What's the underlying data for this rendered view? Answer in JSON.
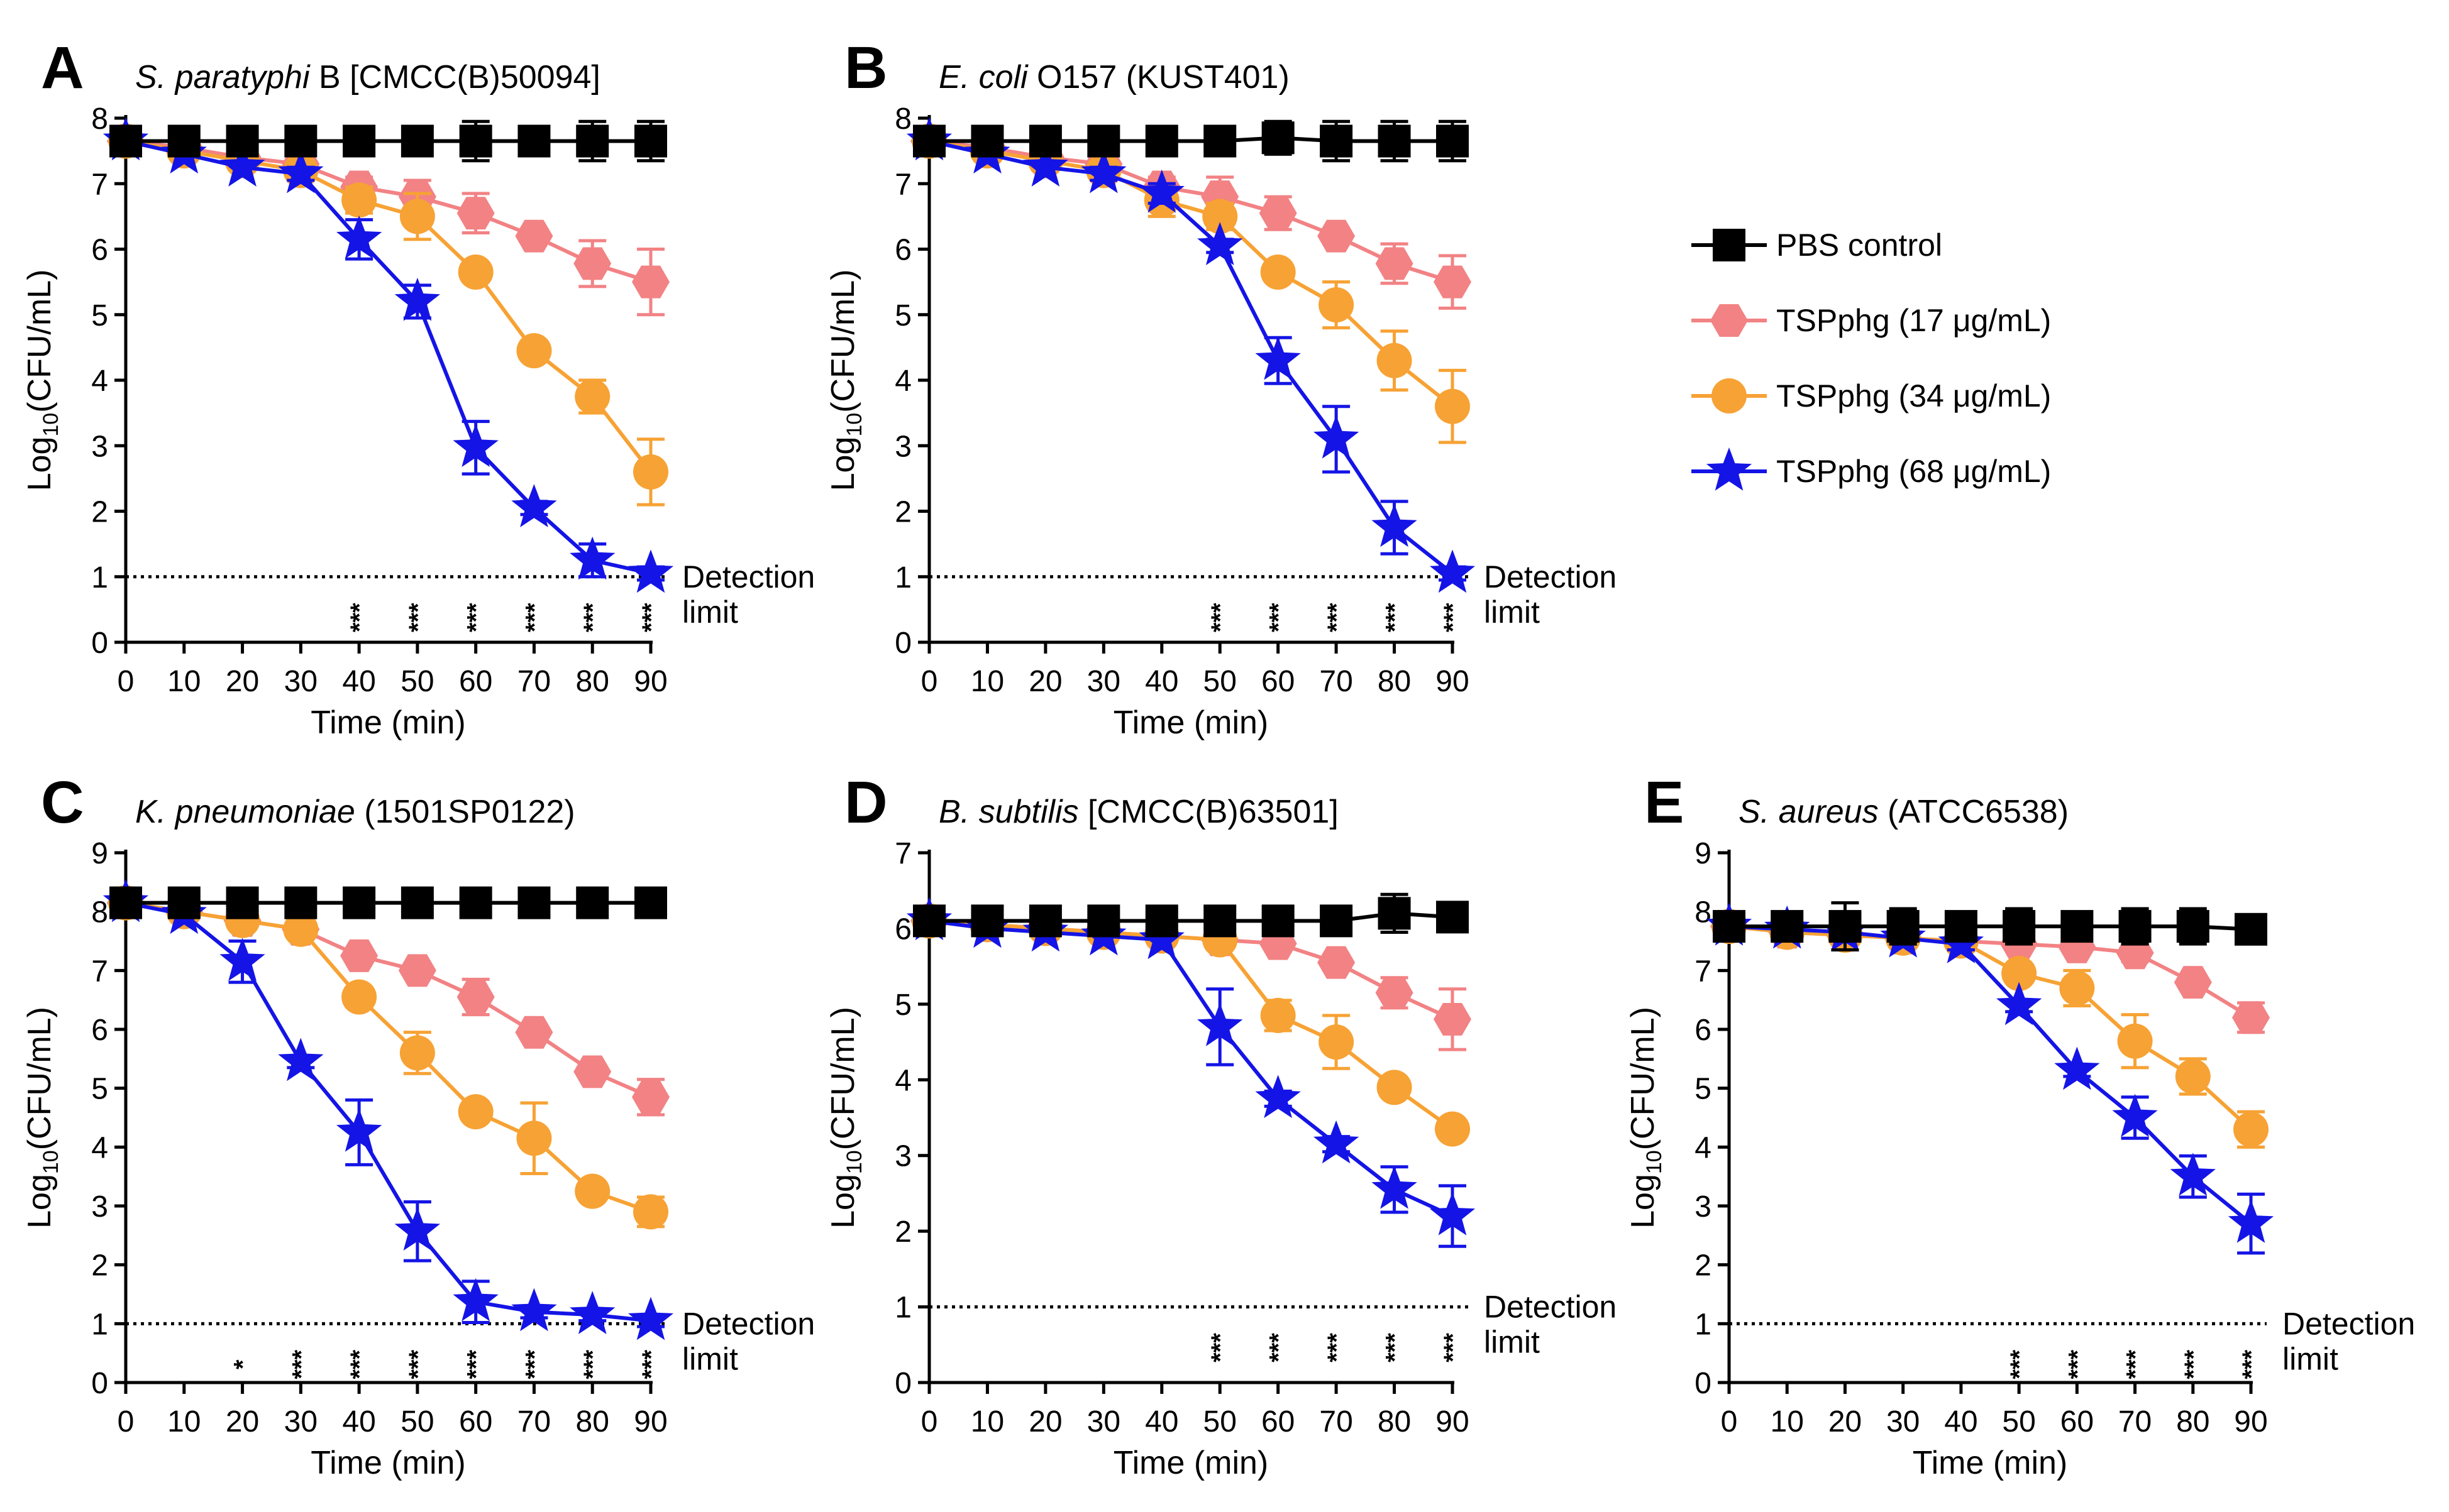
{
  "colors": {
    "pbs": "#000000",
    "tsp17": "#f28284",
    "tsp34": "#f7a234",
    "tsp68": "#1414e6"
  },
  "legend": [
    {
      "key": "pbs",
      "label": "PBS control",
      "marker": "square"
    },
    {
      "key": "tsp17",
      "label": "TSPphg (17 μg/mL)",
      "marker": "hexagon"
    },
    {
      "key": "tsp34",
      "label": "TSPphg (34 μg/mL)",
      "marker": "circle"
    },
    {
      "key": "tsp68",
      "label": "TSPphg (68 μg/mL)",
      "marker": "star"
    }
  ],
  "axis_common": {
    "xlabel": "Time (min)",
    "ylabel_prefix": "Log",
    "ylabel_sub": "10",
    "ylabel_suffix": "(CFU/mL)",
    "x_ticks": [
      0,
      10,
      20,
      30,
      40,
      50,
      60,
      70,
      80,
      90
    ]
  },
  "detection_limit_label": [
    "Detection",
    "limit"
  ],
  "chart_data": [
    {
      "type": "line",
      "panel": "A",
      "title_italic": "S. paratyphi",
      "title_rest": " B [CMCC(B)50094]",
      "xlabel": "Time (min)",
      "ylabel": "Log10(CFU/mL)",
      "ylim": [
        0,
        8
      ],
      "y_ticks": [
        0,
        1,
        2,
        3,
        4,
        5,
        6,
        7,
        8
      ],
      "detection_limit": 1,
      "x": [
        0,
        10,
        20,
        30,
        40,
        50,
        60,
        70,
        80,
        90
      ],
      "series": [
        {
          "key": "pbs",
          "values": [
            7.65,
            7.65,
            7.65,
            7.65,
            7.65,
            7.65,
            7.65,
            7.65,
            7.65,
            7.65
          ],
          "errors": [
            0.05,
            0.05,
            0.05,
            0.05,
            0.05,
            0.05,
            0.3,
            0.05,
            0.3,
            0.3
          ]
        },
        {
          "key": "tsp17",
          "values": [
            7.65,
            7.55,
            7.4,
            7.3,
            6.95,
            6.8,
            6.55,
            6.2,
            5.78,
            5.5
          ],
          "errors": [
            0.05,
            0.05,
            0.05,
            0.1,
            0.15,
            0.25,
            0.3,
            0.1,
            0.35,
            0.5
          ]
        },
        {
          "key": "tsp34",
          "values": [
            7.65,
            7.5,
            7.35,
            7.2,
            6.75,
            6.5,
            5.65,
            4.45,
            3.75,
            2.6
          ],
          "errors": [
            0.05,
            0.05,
            0.05,
            0.1,
            0.2,
            0.35,
            0.1,
            0.1,
            0.25,
            0.5
          ]
        },
        {
          "key": "tsp68",
          "values": [
            7.65,
            7.45,
            7.25,
            7.15,
            6.15,
            5.2,
            2.97,
            2.05,
            1.25,
            1.05
          ],
          "errors": [
            0.05,
            0.05,
            0.05,
            0.1,
            0.3,
            0.25,
            0.4,
            0.1,
            0.25,
            0.1
          ]
        }
      ],
      "significance": [
        {
          "x": 40,
          "label": "***"
        },
        {
          "x": 50,
          "label": "***"
        },
        {
          "x": 60,
          "label": "***"
        },
        {
          "x": 70,
          "label": "***"
        },
        {
          "x": 80,
          "label": "***"
        },
        {
          "x": 90,
          "label": "***"
        }
      ]
    },
    {
      "type": "line",
      "panel": "B",
      "title_italic": "E. coli",
      "title_rest": " O157 (KUST401)",
      "xlabel": "Time (min)",
      "ylabel": "Log10(CFU/mL)",
      "ylim": [
        0,
        8
      ],
      "y_ticks": [
        0,
        1,
        2,
        3,
        4,
        5,
        6,
        7,
        8
      ],
      "detection_limit": 1,
      "x": [
        0,
        10,
        20,
        30,
        40,
        50,
        60,
        70,
        80,
        90
      ],
      "series": [
        {
          "key": "pbs",
          "values": [
            7.65,
            7.65,
            7.65,
            7.65,
            7.65,
            7.65,
            7.7,
            7.65,
            7.65,
            7.65
          ],
          "errors": [
            0.05,
            0.05,
            0.05,
            0.05,
            0.05,
            0.05,
            0.25,
            0.3,
            0.3,
            0.3
          ]
        },
        {
          "key": "tsp17",
          "values": [
            7.65,
            7.55,
            7.4,
            7.3,
            6.95,
            6.8,
            6.55,
            6.2,
            5.78,
            5.5
          ],
          "errors": [
            0.05,
            0.05,
            0.05,
            0.1,
            0.15,
            0.3,
            0.25,
            0.1,
            0.3,
            0.4
          ]
        },
        {
          "key": "tsp34",
          "values": [
            7.65,
            7.5,
            7.35,
            7.2,
            6.75,
            6.5,
            5.65,
            5.15,
            4.3,
            3.6
          ],
          "errors": [
            0.05,
            0.05,
            0.05,
            0.1,
            0.25,
            0.2,
            0.1,
            0.35,
            0.45,
            0.55
          ]
        },
        {
          "key": "tsp68",
          "values": [
            7.65,
            7.45,
            7.25,
            7.15,
            6.85,
            6.05,
            4.3,
            3.1,
            1.75,
            1.05
          ],
          "errors": [
            0.05,
            0.05,
            0.05,
            0.1,
            0.15,
            0.1,
            0.35,
            0.5,
            0.4,
            0.1
          ]
        }
      ],
      "significance": [
        {
          "x": 50,
          "label": "***"
        },
        {
          "x": 60,
          "label": "***"
        },
        {
          "x": 70,
          "label": "***"
        },
        {
          "x": 80,
          "label": "***"
        },
        {
          "x": 90,
          "label": "***"
        }
      ]
    },
    {
      "type": "line",
      "panel": "C",
      "title_italic": "K. pneumoniae",
      "title_rest": " (1501SP0122)",
      "xlabel": "Time (min)",
      "ylabel": "Log10(CFU/mL)",
      "ylim": [
        0,
        9
      ],
      "y_ticks": [
        0,
        1,
        2,
        3,
        4,
        5,
        6,
        7,
        8,
        9
      ],
      "detection_limit": 1,
      "x": [
        0,
        10,
        20,
        30,
        40,
        50,
        60,
        70,
        80,
        90
      ],
      "series": [
        {
          "key": "pbs",
          "values": [
            8.15,
            8.15,
            8.15,
            8.15,
            8.15,
            8.15,
            8.15,
            8.15,
            8.15,
            8.15
          ],
          "errors": [
            0.05,
            0.05,
            0.05,
            0.05,
            0.05,
            0.05,
            0.05,
            0.05,
            0.05,
            0.05
          ]
        },
        {
          "key": "tsp17",
          "values": [
            8.15,
            8.0,
            7.85,
            7.7,
            7.25,
            7.0,
            6.55,
            5.95,
            5.28,
            4.85
          ],
          "errors": [
            0.05,
            0.05,
            0.1,
            0.1,
            0.1,
            0.1,
            0.3,
            0.1,
            0.1,
            0.3
          ]
        },
        {
          "key": "tsp34",
          "values": [
            8.15,
            8.0,
            7.85,
            7.7,
            6.55,
            5.6,
            4.6,
            4.15,
            3.25,
            2.9
          ],
          "errors": [
            0.05,
            0.05,
            0.1,
            0.1,
            0.1,
            0.35,
            0.1,
            0.6,
            0.1,
            0.25
          ]
        },
        {
          "key": "tsp68",
          "values": [
            8.15,
            7.95,
            7.15,
            5.45,
            4.25,
            2.57,
            1.37,
            1.2,
            1.15,
            1.05
          ],
          "errors": [
            0.05,
            0.05,
            0.35,
            0.1,
            0.55,
            0.5,
            0.35,
            0.1,
            0.1,
            0.1
          ]
        }
      ],
      "significance": [
        {
          "x": 20,
          "label": "*"
        },
        {
          "x": 30,
          "label": "***"
        },
        {
          "x": 40,
          "label": "***"
        },
        {
          "x": 50,
          "label": "***"
        },
        {
          "x": 60,
          "label": "***"
        },
        {
          "x": 70,
          "label": "***"
        },
        {
          "x": 80,
          "label": "***"
        },
        {
          "x": 90,
          "label": "***"
        }
      ]
    },
    {
      "type": "line",
      "panel": "D",
      "title_italic": "B. subtilis",
      "title_rest": " [CMCC(B)63501]",
      "xlabel": "Time (min)",
      "ylabel": "Log10(CFU/mL)",
      "ylim": [
        0,
        7
      ],
      "y_ticks": [
        0,
        1,
        2,
        3,
        4,
        5,
        6,
        7
      ],
      "detection_limit": 1,
      "x": [
        0,
        10,
        20,
        30,
        40,
        50,
        60,
        70,
        80,
        90
      ],
      "series": [
        {
          "key": "pbs",
          "values": [
            6.1,
            6.1,
            6.1,
            6.1,
            6.1,
            6.1,
            6.1,
            6.1,
            6.2,
            6.15
          ],
          "errors": [
            0.05,
            0.05,
            0.05,
            0.05,
            0.05,
            0.05,
            0.05,
            0.05,
            0.25,
            0.1
          ]
        },
        {
          "key": "tsp17",
          "values": [
            6.1,
            6.05,
            6.0,
            5.95,
            5.9,
            5.85,
            5.8,
            5.55,
            5.15,
            4.8
          ],
          "errors": [
            0.05,
            0.05,
            0.05,
            0.05,
            0.05,
            0.1,
            0.1,
            0.1,
            0.2,
            0.4
          ]
        },
        {
          "key": "tsp34",
          "values": [
            6.1,
            6.05,
            6.0,
            5.95,
            5.9,
            5.85,
            4.85,
            4.5,
            3.9,
            3.35
          ],
          "errors": [
            0.05,
            0.05,
            0.05,
            0.05,
            0.05,
            0.1,
            0.2,
            0.35,
            0.1,
            0.1
          ]
        },
        {
          "key": "tsp68",
          "values": [
            6.1,
            6.0,
            5.95,
            5.9,
            5.85,
            4.7,
            3.75,
            3.15,
            2.55,
            2.2
          ],
          "errors": [
            0.05,
            0.05,
            0.05,
            0.05,
            0.05,
            0.5,
            0.1,
            0.1,
            0.3,
            0.4
          ]
        }
      ],
      "significance": [
        {
          "x": 50,
          "label": "***"
        },
        {
          "x": 60,
          "label": "***"
        },
        {
          "x": 70,
          "label": "***"
        },
        {
          "x": 80,
          "label": "***"
        },
        {
          "x": 90,
          "label": "***"
        }
      ]
    },
    {
      "type": "line",
      "panel": "E",
      "title_italic": "S. aureus",
      "title_rest": " (ATCC6538)",
      "xlabel": "Time (min)",
      "ylabel": "Log10(CFU/mL)",
      "ylim": [
        0,
        9
      ],
      "y_ticks": [
        0,
        1,
        2,
        3,
        4,
        5,
        6,
        7,
        8,
        9
      ],
      "detection_limit": 1,
      "x": [
        0,
        10,
        20,
        30,
        40,
        50,
        60,
        70,
        80,
        90
      ],
      "series": [
        {
          "key": "pbs",
          "values": [
            7.75,
            7.75,
            7.75,
            7.75,
            7.75,
            7.75,
            7.75,
            7.75,
            7.75,
            7.7
          ],
          "errors": [
            0.05,
            0.05,
            0.4,
            0.3,
            0.15,
            0.3,
            0.15,
            0.3,
            0.3,
            0.2
          ]
        },
        {
          "key": "tsp17",
          "values": [
            7.75,
            7.65,
            7.6,
            7.55,
            7.5,
            7.45,
            7.4,
            7.3,
            6.8,
            6.2
          ],
          "errors": [
            0.05,
            0.05,
            0.1,
            0.1,
            0.1,
            0.1,
            0.1,
            0.15,
            0.1,
            0.25
          ]
        },
        {
          "key": "tsp34",
          "values": [
            7.75,
            7.65,
            7.6,
            7.55,
            7.5,
            6.95,
            6.7,
            5.8,
            5.2,
            4.3
          ],
          "errors": [
            0.05,
            0.05,
            0.1,
            0.1,
            0.1,
            0.1,
            0.3,
            0.45,
            0.3,
            0.3
          ]
        },
        {
          "key": "tsp68",
          "values": [
            7.75,
            7.7,
            7.65,
            7.55,
            7.45,
            6.4,
            5.3,
            4.5,
            3.5,
            2.7
          ],
          "errors": [
            0.05,
            0.05,
            0.1,
            0.1,
            0.1,
            0.1,
            0.1,
            0.35,
            0.35,
            0.5
          ]
        }
      ],
      "significance": [
        {
          "x": 50,
          "label": "***"
        },
        {
          "x": 60,
          "label": "***"
        },
        {
          "x": 70,
          "label": "***"
        },
        {
          "x": 80,
          "label": "***"
        },
        {
          "x": 90,
          "label": "***"
        }
      ]
    }
  ]
}
